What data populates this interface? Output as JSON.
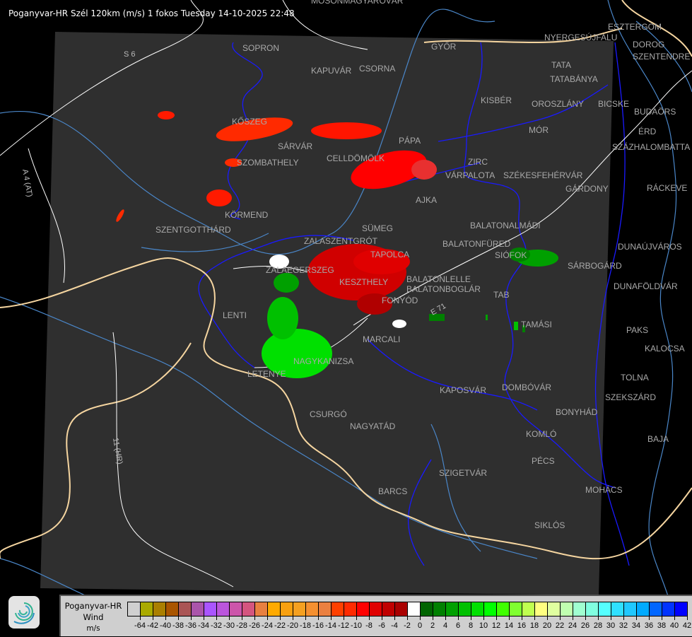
{
  "header": {
    "title": "Poganyvar-HR Szél 120km (m/s) 1 fokos Tuesday 14-10-2025 22:48"
  },
  "map": {
    "background_color": "#000000",
    "coverage_color": "#2f2f2f",
    "border_color": "#0000ff",
    "river_color": "#4a86c8",
    "road_color": "#ffffff",
    "country_border_color": "#f5d5a0",
    "cities": [
      "SOPRON",
      "KAPUVÁR",
      "CSORNA",
      "MOSONMAGYARÓVÁR",
      "GYŐR",
      "ESZTERGOM",
      "NYERGESÚJFALU",
      "DOROG",
      "SZENTENDRE",
      "TATA",
      "TATABÁNYA",
      "KISBÉR",
      "OROSZLÁNY",
      "BICSKE",
      "BUDAÖRS",
      "ÉRD",
      "SZÁZHALOMBATTA",
      "MÓR",
      "ZIRC",
      "VÁRPALOTA",
      "SZÉKESFEHÉRVÁR",
      "GÁRDONY",
      "RÁCKEVE",
      "KŐSZEG",
      "SÁRVÁR",
      "SZOMBATHELY",
      "CELLDÖMÖLK",
      "PÁPA",
      "AJKA",
      "KÖRMEND",
      "SZENTGOTTHÁRD",
      "BALATONALMÁDI",
      "SÜMEG",
      "ZALASZENTGRÓT",
      "TAPOLCA",
      "BALATONFÜRED",
      "SIÓFOK",
      "SÁRBOGÁRD",
      "DUNAÚJVÁROS",
      "ZALAEGERSZEG",
      "KESZTHELY",
      "BALATONLELLE",
      "BALATONBOGLÁR",
      "FONYÓD",
      "DUNAFÖLDVÁR",
      "TAB",
      "LENTI",
      "TAMÁSI",
      "PAKS",
      "MARCALI",
      "KALOCSA",
      "NAGYKANIZSA",
      "LETENYE",
      "TOLNA",
      "KAPOSVÁR",
      "DOMBÓVÁR",
      "SZEKSZÁRD",
      "BONYHÁD",
      "CSURGÓ",
      "NAGYATÁD",
      "KOMLÓ",
      "BAJA",
      "PÉCS",
      "SZIGETVÁR",
      "MOHÁCS",
      "BARCS",
      "SIKLÓS"
    ],
    "roads": [
      "S 6",
      "A 4 (AT)",
      "11 (HR)",
      "E 71"
    ]
  },
  "legend": {
    "name": "Poganyvar-HR",
    "quantity": "Wind",
    "unit": "m/s",
    "colors": [
      "#d0d0d0",
      "#aaaa00",
      "#aa7f00",
      "#aa5500",
      "#aa5555",
      "#aa55aa",
      "#aa55ff",
      "#bb55dd",
      "#cc55aa",
      "#d4557f",
      "#e88040",
      "#ffaa00",
      "#f8a010",
      "#f5a020",
      "#f59030",
      "#eb8040",
      "#ff4000",
      "#ff2a00",
      "#ff0000",
      "#e00000",
      "#c00000",
      "#aa0000",
      "#ffffff",
      "#006400",
      "#008000",
      "#00a000",
      "#00c000",
      "#00e000",
      "#00ff00",
      "#40ff00",
      "#80ff30",
      "#c0ff50",
      "#ffff80",
      "#e0ffa0",
      "#c0ffb0",
      "#a0ffd0",
      "#80ffe0",
      "#55ffff",
      "#30e0ff",
      "#20c8ff",
      "#00aaff",
      "#0066ff",
      "#0033ff",
      "#0000ff"
    ],
    "labels": [
      "-64",
      "-42",
      "-40",
      "-38",
      "-36",
      "-34",
      "-32",
      "-30",
      "-28",
      "-26",
      "-24",
      "-22",
      "-20",
      "-18",
      "-16",
      "-14",
      "-12",
      "-10",
      "-8",
      "-6",
      "-4",
      "-2",
      "0",
      "2",
      "4",
      "6",
      "8",
      "10",
      "12",
      "14",
      "16",
      "18",
      "20",
      "22",
      "24",
      "26",
      "28",
      "30",
      "32",
      "34",
      "36",
      "38",
      "40",
      "42"
    ]
  }
}
